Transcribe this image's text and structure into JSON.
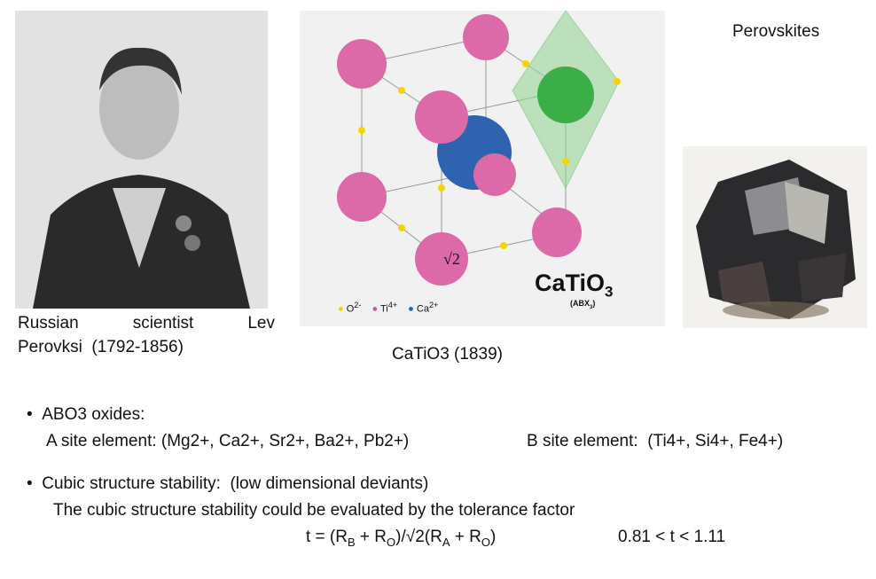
{
  "header": {
    "title": "Perovskites"
  },
  "portrait": {
    "caption_line1_words": [
      "Russian",
      "scientist",
      "Lev"
    ],
    "caption_line2": "Perovksi  (1792-1856)"
  },
  "crystal": {
    "formula_main": "CaTiO",
    "formula_sub": "3",
    "formula_type": "(ABX",
    "formula_type_sub": "3",
    "formula_type_end": ")",
    "sqrt_label": "√2",
    "legend": [
      {
        "ion": "O",
        "charge": "2-",
        "color": "#f2d600"
      },
      {
        "ion": "Ti",
        "charge": "4+",
        "color": "#d9509a"
      },
      {
        "ion": "Ca",
        "charge": "2+",
        "color": "#2f63b0"
      }
    ],
    "caption": "CaTiO3 (1839)"
  },
  "bullets": [
    {
      "text": "ABO3 oxides:",
      "sub_a": "A site element: (Mg2+, Ca2+, Sr2+, Ba2+, Pb2+)",
      "sub_b": "B site element:  (Ti4+, Si4+, Fe4+)"
    },
    {
      "text": "Cubic structure stability:  (low dimensional deviants)",
      "sub_a": "The cubic structure stability could be evaluated by the tolerance factor"
    }
  ],
  "formula": {
    "p1": "t = (R",
    "s1": "B",
    "p2": " + R",
    "s2": "O",
    "p3": ")/√2(R",
    "s3": "A",
    "p4": " + R",
    "s4": "O",
    "p5": ")",
    "range": "0.81 < t < 1.11"
  }
}
